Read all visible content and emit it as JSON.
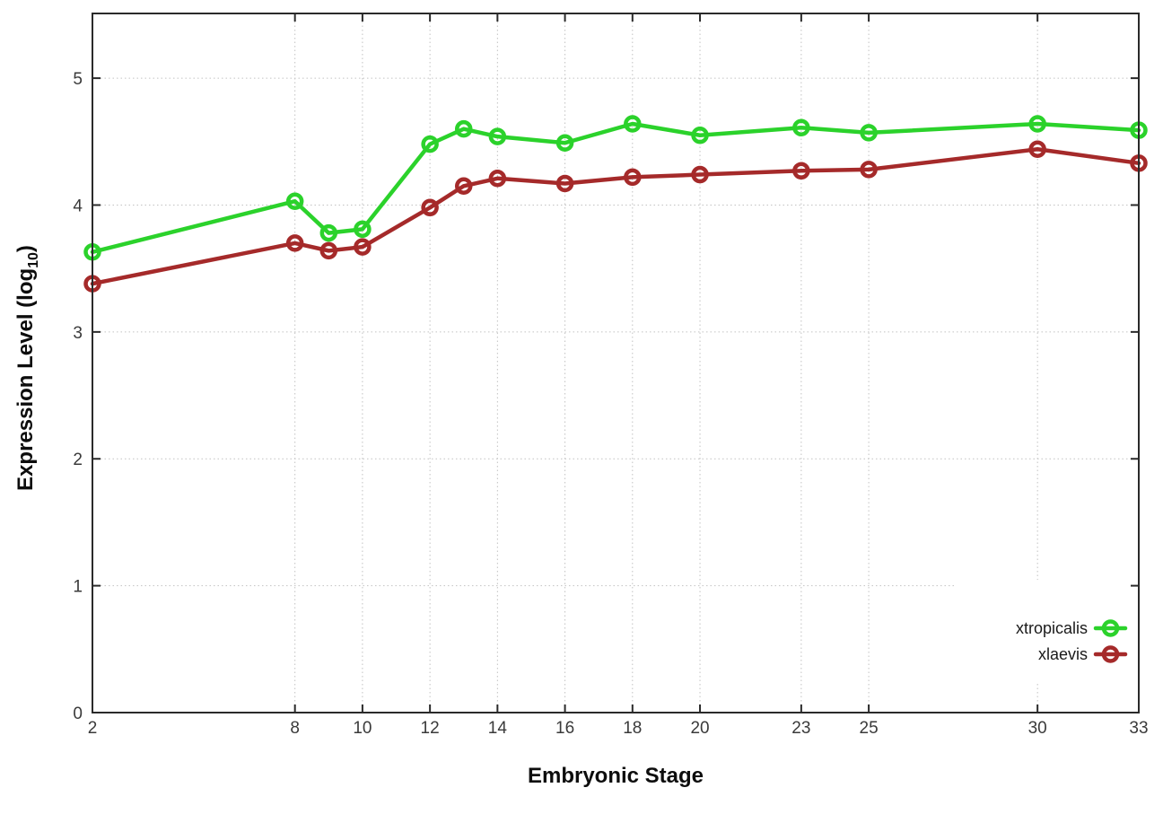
{
  "chart_data": {
    "type": "line",
    "title": "",
    "xlabel": "Embryonic Stage",
    "ylabel": "Expression Level (log10)",
    "ylabel_rich": {
      "pre": "Expression Level (log",
      "sub": "10",
      "post": ")"
    },
    "x": [
      2,
      8,
      9,
      10,
      12,
      13,
      14,
      16,
      18,
      20,
      23,
      25,
      30,
      33
    ],
    "series": [
      {
        "name": "xtropicalis",
        "color": "#2bd22b",
        "values": [
          3.63,
          4.03,
          3.78,
          3.81,
          4.48,
          4.6,
          4.54,
          4.49,
          4.64,
          4.55,
          4.61,
          4.57,
          4.64,
          4.59
        ]
      },
      {
        "name": "xlaevis",
        "color": "#a52a2a",
        "values": [
          3.38,
          3.7,
          3.64,
          3.67,
          3.98,
          4.15,
          4.21,
          4.17,
          4.22,
          4.24,
          4.27,
          4.28,
          4.44,
          4.33
        ]
      }
    ],
    "xticks": [
      2,
      8,
      10,
      12,
      14,
      16,
      18,
      20,
      23,
      25,
      30,
      33
    ],
    "yticks": [
      0,
      1,
      2,
      3,
      4,
      5
    ],
    "xlim": [
      2,
      33
    ],
    "ylim": [
      0,
      5.51
    ],
    "grid": true,
    "grid_style": "dotted",
    "legend_position": "bottom-right",
    "legend_opaque": true,
    "marker": "open-circle",
    "colors": {
      "background": "#ffffff",
      "axis": "#2a2a2a",
      "grid": "#c2c2c2",
      "tick_label": "#3a3a3a",
      "legend_text": "#1a1a1a"
    }
  }
}
